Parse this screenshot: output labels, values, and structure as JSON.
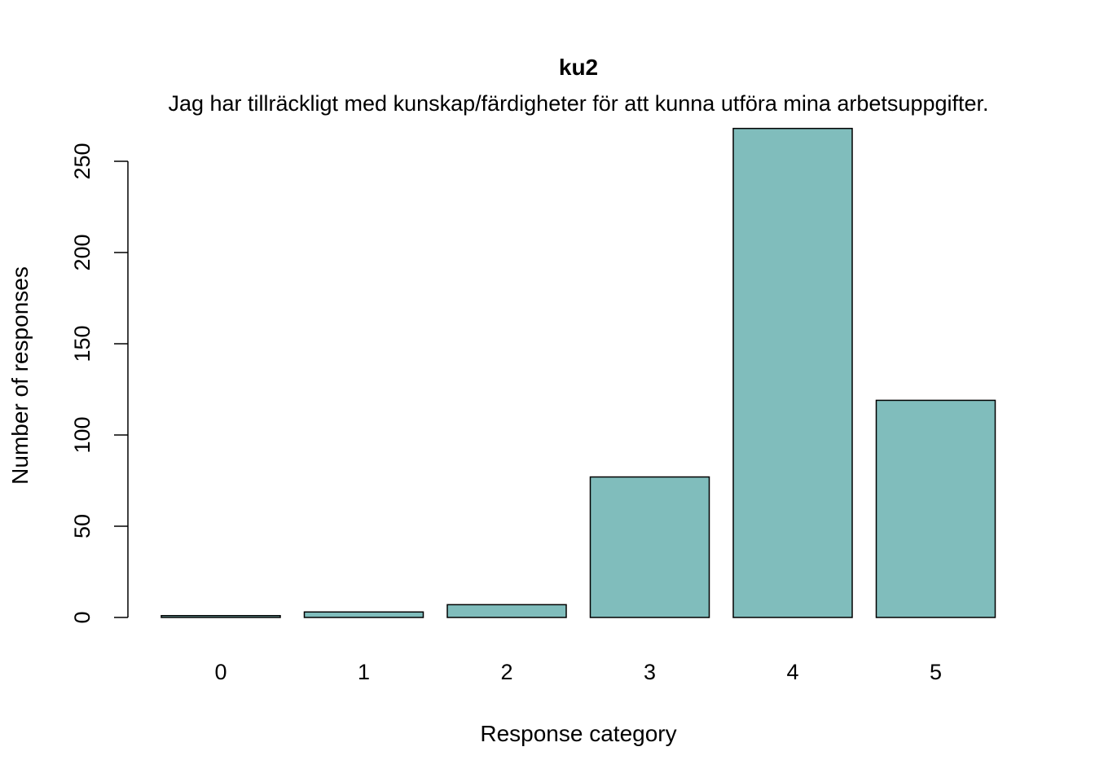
{
  "chart_data": {
    "type": "bar",
    "title": "ku2",
    "subtitle": "Jag har tillräckligt med kunskap/färdigheter för att kunna utföra mina arbetsuppgifter.",
    "xlabel": "Response category",
    "ylabel": "Number of responses",
    "categories": [
      "0",
      "1",
      "2",
      "3",
      "4",
      "5"
    ],
    "values": [
      1,
      3,
      7,
      77,
      268,
      119
    ],
    "yticks": [
      0,
      50,
      100,
      150,
      200,
      250
    ],
    "ylim": [
      0,
      268
    ],
    "grid": false,
    "legend": "none",
    "bar_color": "#80bdbc",
    "bar_border_color": "#000000"
  }
}
